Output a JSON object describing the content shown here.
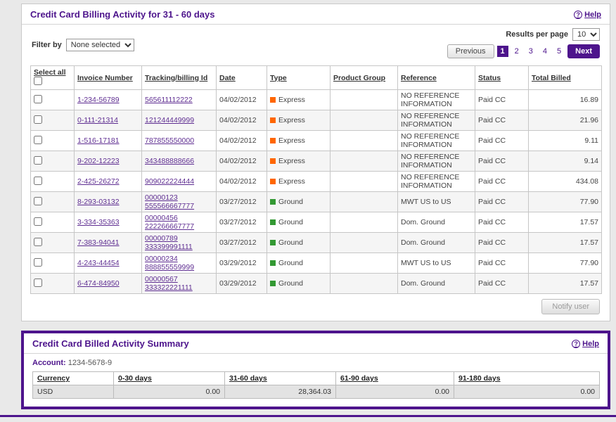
{
  "colors": {
    "purple": "#4d148c",
    "express_orange": "#ff6600",
    "ground_green": "#339933"
  },
  "billing_panel": {
    "title": "Credit Card Billing Activity for 31 - 60 days",
    "help_label": "Help",
    "help_icon_glyph": "?",
    "results_per_page": {
      "label": "Results per page",
      "value": "10"
    },
    "filter": {
      "label": "Filter by",
      "value": "None selected"
    },
    "pagination": {
      "previous_label": "Previous",
      "pages": [
        "1",
        "2",
        "3",
        "4",
        "5"
      ],
      "active_page": "1",
      "next_label": "Next"
    },
    "table": {
      "headers": {
        "select_all": "Select all",
        "invoice": "Invoice Number",
        "tracking": "Tracking/billing Id",
        "date": "Date",
        "type": "Type",
        "product_group": "Product Group",
        "reference": "Reference",
        "status": "Status",
        "total": "Total Billed"
      },
      "rows": [
        {
          "invoice": "1-234-56789",
          "tracking": "565611112222",
          "date": "04/02/2012",
          "type": "Express",
          "product_group": "",
          "reference": "NO REFERENCE INFORMATION",
          "status": "Paid CC",
          "total": "16.89"
        },
        {
          "invoice": "0-111-21314",
          "tracking": "121244449999",
          "date": "04/02/2012",
          "type": "Express",
          "product_group": "",
          "reference": "NO REFERENCE INFORMATION",
          "status": "Paid CC",
          "total": "21.96"
        },
        {
          "invoice": "1-516-17181",
          "tracking": "787855550000",
          "date": "04/02/2012",
          "type": "Express",
          "product_group": "",
          "reference": "NO REFERENCE INFORMATION",
          "status": "Paid CC",
          "total": "9.11"
        },
        {
          "invoice": "9-202-12223",
          "tracking": "343488888666",
          "date": "04/02/2012",
          "type": "Express",
          "product_group": "",
          "reference": "NO REFERENCE INFORMATION",
          "status": "Paid CC",
          "total": "9.14"
        },
        {
          "invoice": "2-425-26272",
          "tracking": "909022224444",
          "date": "04/02/2012",
          "type": "Express",
          "product_group": "",
          "reference": "NO REFERENCE INFORMATION",
          "status": "Paid CC",
          "total": "434.08"
        },
        {
          "invoice": "8-293-03132",
          "tracking": "00000123 555566667777",
          "date": "03/27/2012",
          "type": "Ground",
          "product_group": "",
          "reference": "MWT US to US",
          "status": "Paid CC",
          "total": "77.90"
        },
        {
          "invoice": "3-334-35363",
          "tracking": "00000456 222266667777",
          "date": "03/27/2012",
          "type": "Ground",
          "product_group": "",
          "reference": "Dom. Ground",
          "status": "Paid CC",
          "total": "17.57"
        },
        {
          "invoice": "7-383-94041",
          "tracking": "00000789 333399991111",
          "date": "03/27/2012",
          "type": "Ground",
          "product_group": "",
          "reference": "Dom. Ground",
          "status": "Paid CC",
          "total": "17.57"
        },
        {
          "invoice": "4-243-44454",
          "tracking": "00000234 888855559999",
          "date": "03/29/2012",
          "type": "Ground",
          "product_group": "",
          "reference": "MWT US to US",
          "status": "Paid CC",
          "total": "77.90"
        },
        {
          "invoice": "6-474-84950",
          "tracking": "00000567 333322221111",
          "date": "03/29/2012",
          "type": "Ground",
          "product_group": "",
          "reference": "Dom. Ground",
          "status": "Paid CC",
          "total": "17.57"
        }
      ]
    },
    "notify_button_label": "Notify user"
  },
  "summary_panel": {
    "title": "Credit Card Billed Activity Summary",
    "help_label": "Help",
    "help_icon_glyph": "?",
    "account_label": "Account:",
    "account_value": "1234-5678-9",
    "table": {
      "headers": [
        "Currency",
        "0-30 days",
        "31-60 days",
        "61-90 days",
        "91-180 days"
      ],
      "rows": [
        [
          "USD",
          "0.00",
          "28,364.03",
          "0.00",
          "0.00"
        ]
      ]
    }
  }
}
